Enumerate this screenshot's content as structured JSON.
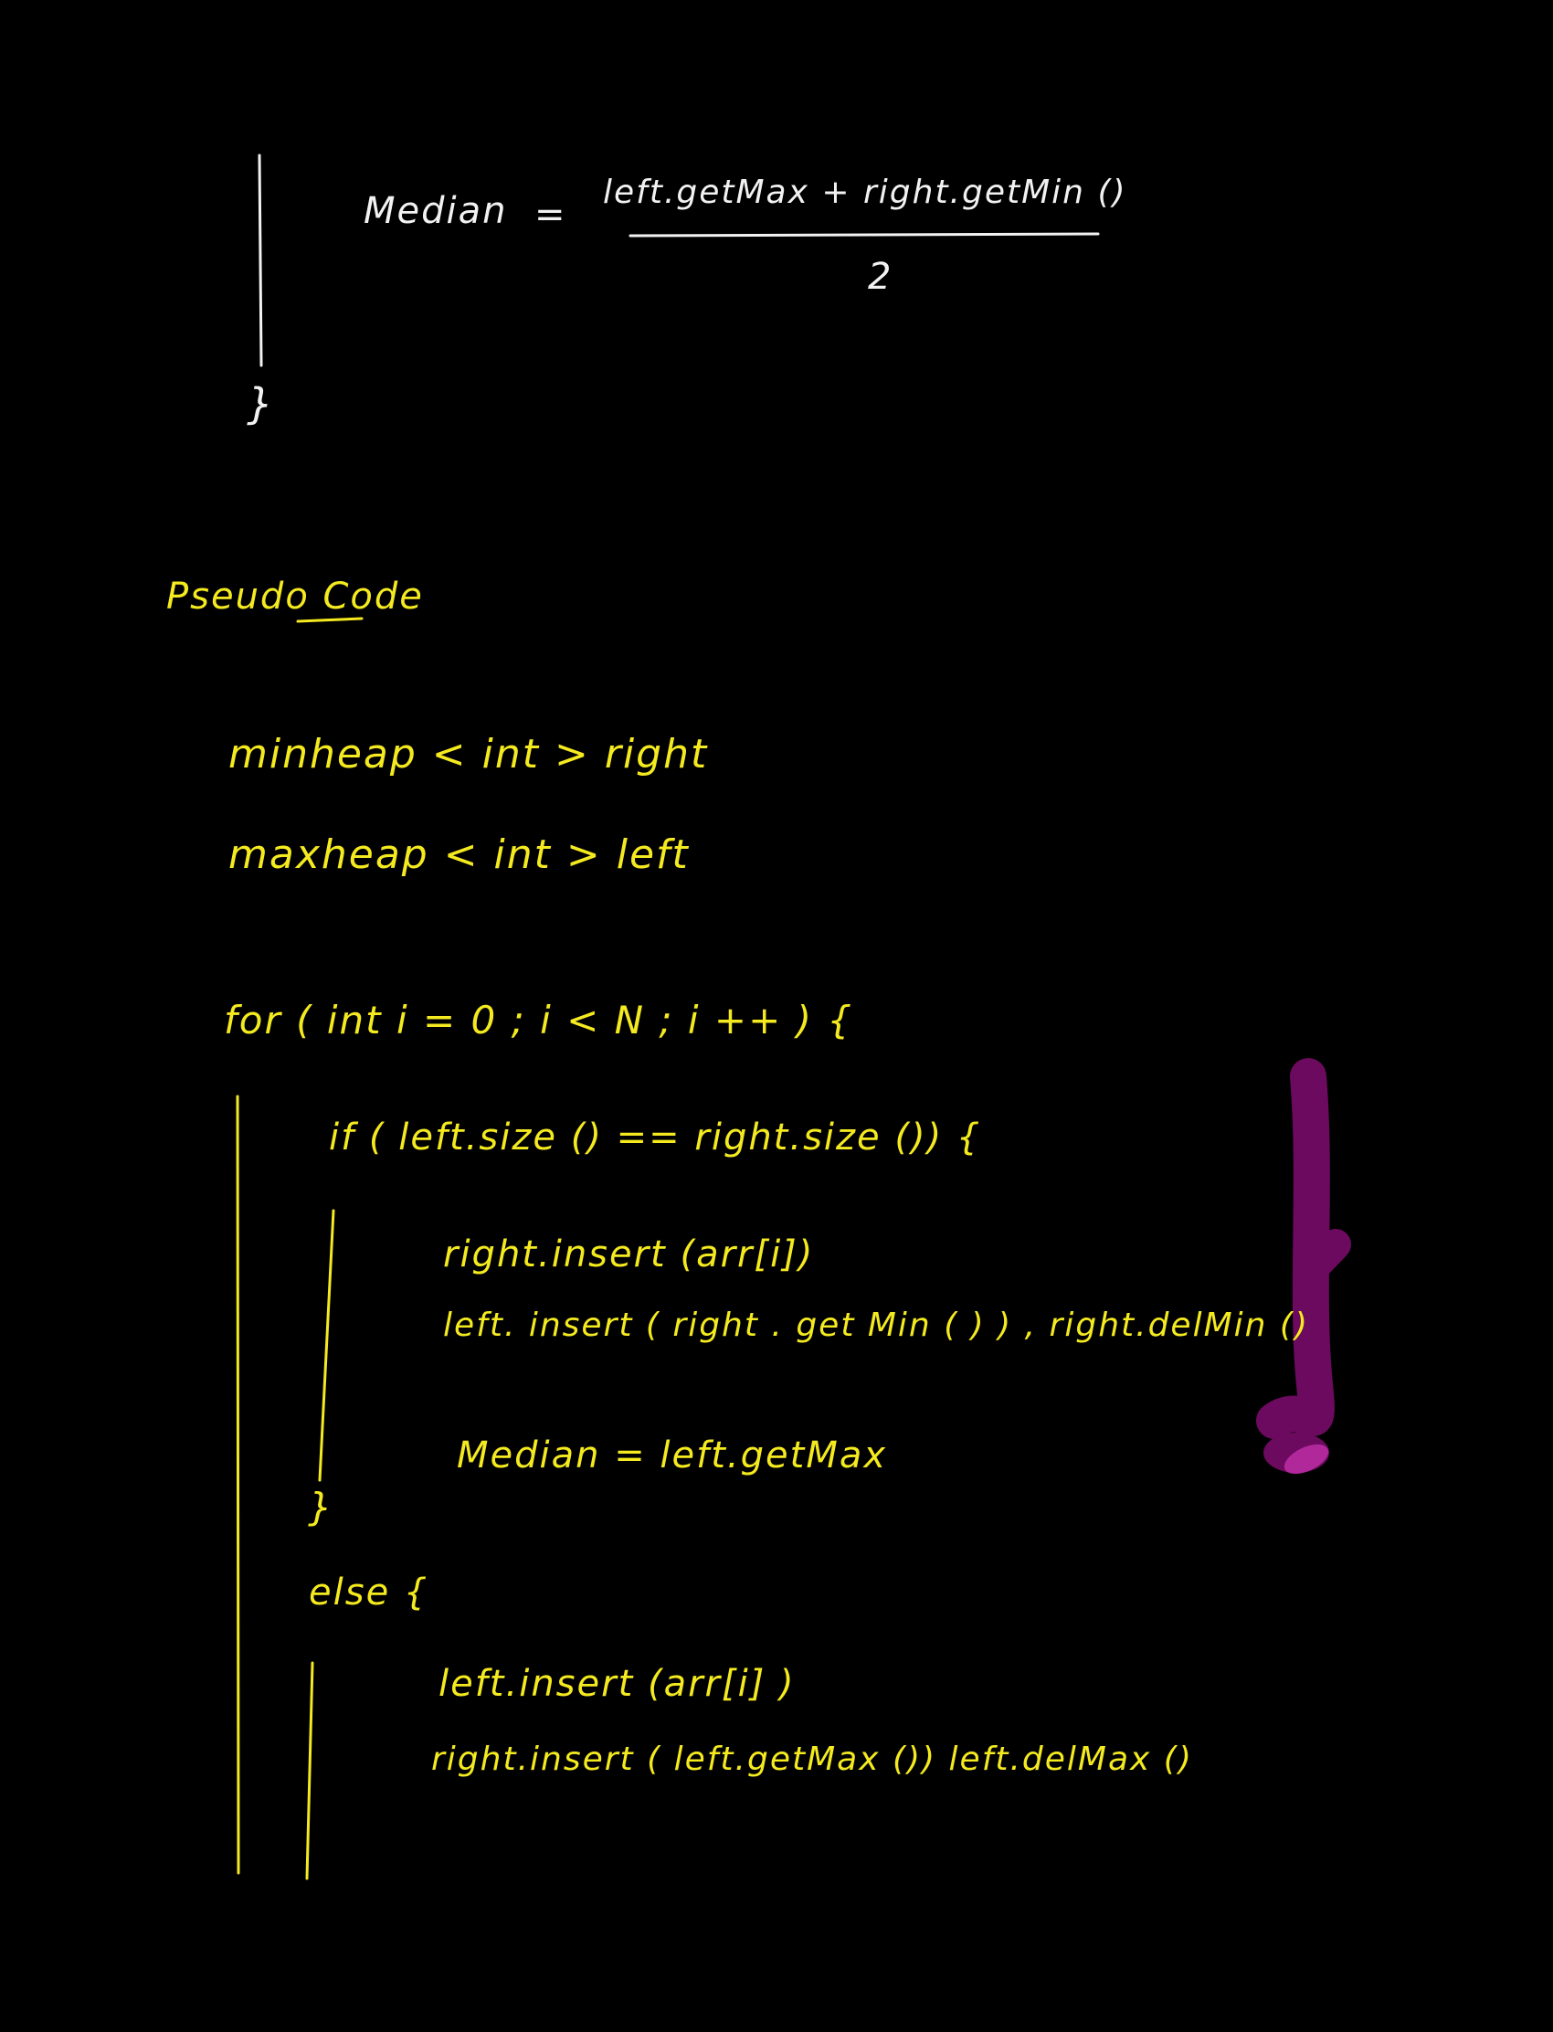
{
  "colors": {
    "background": "#000000",
    "white_ink": "#f2f2f2",
    "yellow_ink": "#f4ea1f",
    "purple_ink": "#6b0a5e",
    "magenta_highlight": "#b0289a"
  },
  "top_section": {
    "median_label": "Median",
    "equals": "=",
    "numerator": "left.getMax + right.getMin ()",
    "denominator": "2",
    "closing_brace": "}"
  },
  "heading": "Pseudo Code",
  "declarations": [
    "minheap < int > right",
    "maxheap < int > left"
  ],
  "code": {
    "for_line": "for ( int i = 0 ; i < N ; i ++ ) {",
    "if_line": "if ( left.size () == right.size ()) {",
    "if_body": [
      "right.insert (arr[i])",
      "left. insert ( right . get Min ( ) ) , right.delMin ()"
    ],
    "if_median": "Median = left.getMax",
    "if_close": "}",
    "else_line": "else {",
    "else_body": [
      "left.insert (arr[i] )",
      "right.insert ( left.getMax ()) left.delMax ()"
    ]
  }
}
